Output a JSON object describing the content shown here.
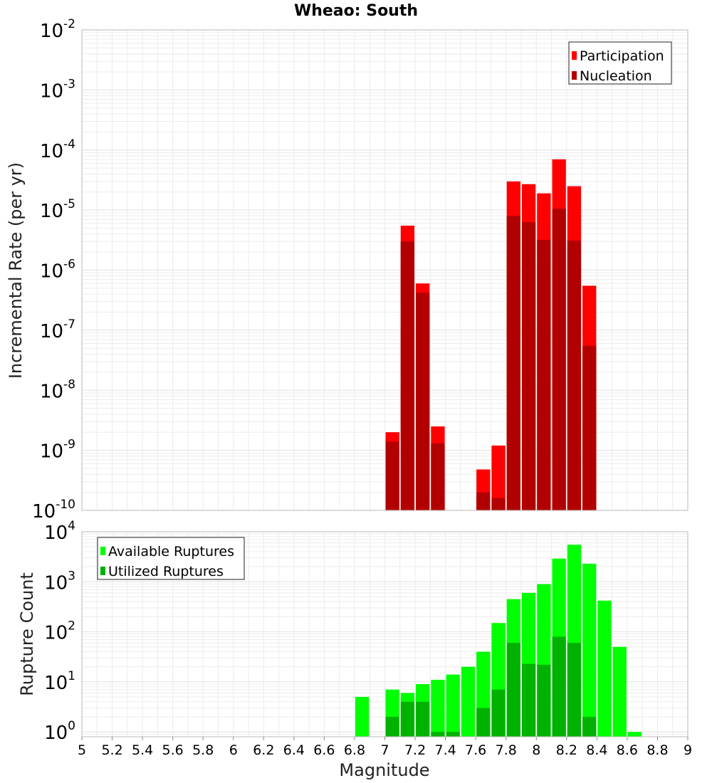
{
  "chart_data": [
    {
      "type": "bar",
      "title": "Wheao: South",
      "xlabel": "",
      "ylabel": "Incremental Rate (per yr)",
      "yscale": "log",
      "xlim": [
        5,
        9
      ],
      "ylim": [
        1e-10,
        0.01
      ],
      "ytick_exponents": [
        -2,
        -3,
        -4,
        -5,
        -6,
        -7,
        -8,
        -9,
        -10
      ],
      "bar_width": 0.1,
      "legend": {
        "position": "top-right"
      },
      "colors": {
        "Participation": "#ff0000",
        "Nucleation": "#b20000"
      },
      "series": [
        {
          "name": "Participation",
          "x": [
            7.0,
            7.1,
            7.2,
            7.3,
            7.6,
            7.7,
            7.8,
            7.9,
            8.0,
            8.1,
            8.2,
            8.3
          ],
          "values": [
            2e-09,
            5.5e-06,
            6e-07,
            2.5e-09,
            4.8e-10,
            1.2e-09,
            3e-05,
            2.7e-05,
            1.9e-05,
            7e-05,
            2.5e-05,
            5.5e-07
          ]
        },
        {
          "name": "Nucleation",
          "x": [
            7.0,
            7.1,
            7.2,
            7.3,
            7.6,
            7.7,
            7.8,
            7.9,
            8.0,
            8.1,
            8.2,
            8.3
          ],
          "values": [
            1.4e-09,
            3e-06,
            4.2e-07,
            1.3e-09,
            2e-10,
            1.6e-10,
            8e-06,
            6.3e-06,
            3.2e-06,
            1.05e-05,
            3.1e-06,
            5.5e-08
          ]
        }
      ]
    },
    {
      "type": "bar",
      "title": "",
      "xlabel": "Magnitude",
      "ylabel": "Rupture Count",
      "yscale": "log",
      "xlim": [
        5,
        9
      ],
      "ylim": [
        0.8,
        10000.0
      ],
      "ytick_exponents": [
        4,
        3,
        2,
        1,
        0
      ],
      "xtick_labels": [
        "5",
        "5.2",
        "5.4",
        "5.6",
        "5.8",
        "6",
        "6.2",
        "6.4",
        "6.6",
        "6.8",
        "7",
        "7.2",
        "7.4",
        "7.6",
        "7.8",
        "8",
        "8.2",
        "8.4",
        "8.6",
        "8.8",
        "9"
      ],
      "bar_width": 0.1,
      "legend": {
        "position": "top-left"
      },
      "colors": {
        "Available Ruptures": "#00ff00",
        "Utilized Ruptures": "#00b200"
      },
      "series": [
        {
          "name": "Available Ruptures",
          "x": [
            6.8,
            7.0,
            7.1,
            7.2,
            7.3,
            7.4,
            7.5,
            7.6,
            7.7,
            7.8,
            7.9,
            8.0,
            8.1,
            8.2,
            8.3,
            8.4,
            8.5,
            8.6
          ],
          "values": [
            5,
            7,
            6,
            9,
            11,
            14,
            20,
            40,
            150,
            450,
            600,
            900,
            2900,
            5500,
            2300,
            420,
            50,
            1
          ]
        },
        {
          "name": "Utilized Ruptures",
          "x": [
            7.0,
            7.1,
            7.2,
            7.3,
            7.4,
            7.6,
            7.7,
            7.8,
            7.9,
            8.0,
            8.1,
            8.2,
            8.3
          ],
          "values": [
            2,
            4,
            4,
            1,
            1,
            3,
            7,
            60,
            23,
            22,
            80,
            60,
            2
          ]
        }
      ]
    }
  ]
}
